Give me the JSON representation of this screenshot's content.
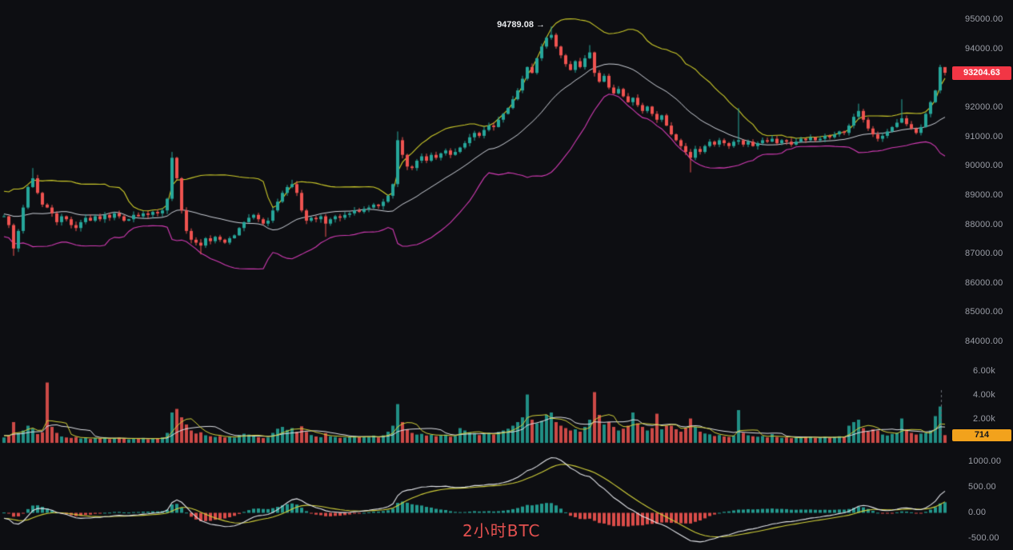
{
  "watermark": {
    "text": "2小时BTC",
    "color": "#e2504f"
  },
  "annotation": {
    "text": "94789.08 →",
    "price": 94789.08,
    "color": "#e8eaed"
  },
  "axes": {
    "price_ticks": [
      {
        "label": "95000.00",
        "value": 95000
      },
      {
        "label": "94000.00",
        "value": 94000
      },
      {
        "label": "92000.00",
        "value": 92000
      },
      {
        "label": "91000.00",
        "value": 91000
      },
      {
        "label": "90000.00",
        "value": 90000
      },
      {
        "label": "89000.00",
        "value": 89000
      },
      {
        "label": "88000.00",
        "value": 88000
      },
      {
        "label": "87000.00",
        "value": 87000
      },
      {
        "label": "86000.00",
        "value": 86000
      },
      {
        "label": "85000.00",
        "value": 85000
      },
      {
        "label": "84000.00",
        "value": 84000
      }
    ],
    "volume_ticks": [
      {
        "label": "6.00k",
        "value": 6000
      },
      {
        "label": "4.00k",
        "value": 4000
      },
      {
        "label": "2.00k",
        "value": 2000
      }
    ],
    "macd_ticks": [
      {
        "label": "1000.00",
        "value": 1000
      },
      {
        "label": "500.00",
        "value": 500
      },
      {
        "label": "0.00",
        "value": 0
      },
      {
        "label": "-500.00",
        "value": -500
      }
    ],
    "last_price_label": "93204.63",
    "last_volume_label": "714"
  },
  "colors": {
    "background": "#0d0e12",
    "axis_text": "#9b9ea7",
    "up": "#26a69a",
    "down": "#ef5350",
    "boll_upper": "#cdcb2a",
    "boll_mid": "#ccd0d8",
    "boll_lower": "#d23bb4",
    "macd_line": "#e4e6eb",
    "signal_line": "#d0cf3a",
    "vol_ma_fast": "#d0cf3a",
    "vol_ma_slow": "#dfe1e6",
    "price_badge_bg": "#f23645",
    "price_badge_text": "#ffffff",
    "volume_badge_bg": "#f2a21c",
    "volume_badge_text": "#17181c",
    "dashed_marker": "#6a6d76"
  },
  "chart_data": {
    "type": "candlestick",
    "timeframe_label": "2小时BTC",
    "panels": [
      "price with bollinger bands",
      "volume with moving averages",
      "macd"
    ],
    "price_axis_range": [
      84000,
      95000
    ],
    "volume_axis_range": [
      0,
      6500
    ],
    "macd_axis_range": [
      -500,
      1000
    ],
    "last_price": 93204.63,
    "last_volume": 714,
    "peak_price": 94789.08,
    "warmup_closes": [
      88900,
      88600,
      88200,
      87800,
      88100,
      88500,
      88900,
      89200,
      88800,
      88400,
      88000,
      87700,
      87900,
      88200,
      88600,
      88900,
      88700,
      88400,
      88100,
      88300
    ],
    "closes": [
      88300,
      88000,
      87200,
      87800,
      88600,
      89300,
      89600,
      89100,
      88700,
      88600,
      88400,
      88100,
      88300,
      88200,
      88000,
      87900,
      88100,
      88250,
      88150,
      88300,
      88200,
      88350,
      88250,
      88400,
      88300,
      88150,
      88200,
      88350,
      88300,
      88400,
      88350,
      88450,
      88400,
      88500,
      88900,
      90300,
      89600,
      88500,
      87800,
      87500,
      87400,
      87300,
      87550,
      87450,
      87600,
      87500,
      87400,
      87550,
      87650,
      87900,
      88100,
      88250,
      88350,
      88200,
      88050,
      88150,
      88500,
      88800,
      89100,
      89300,
      89400,
      89100,
      88500,
      88150,
      88250,
      88200,
      88300,
      88050,
      88200,
      88300,
      88250,
      88350,
      88400,
      88500,
      88450,
      88550,
      88600,
      88700,
      88650,
      88800,
      89000,
      89400,
      90900,
      90400,
      90000,
      89950,
      90200,
      90350,
      90200,
      90400,
      90300,
      90450,
      90550,
      90400,
      90500,
      90650,
      90800,
      91000,
      91150,
      91050,
      91250,
      91400,
      91350,
      91600,
      91800,
      92000,
      92300,
      92600,
      93000,
      93400,
      93200,
      93700,
      94100,
      94400,
      94500,
      94100,
      93800,
      93500,
      93300,
      93600,
      93400,
      93700,
      93900,
      93200,
      92900,
      93100,
      92700,
      92500,
      92650,
      92400,
      92200,
      92350,
      92100,
      91900,
      92050,
      91800,
      91600,
      91750,
      91400,
      91100,
      90900,
      90700,
      90500,
      90300,
      90600,
      90500,
      90700,
      90850,
      90750,
      90900,
      90800,
      90700,
      90850,
      90900,
      90750,
      90850,
      90700,
      90800,
      90900,
      90850,
      90950,
      90800,
      90900,
      90850,
      90750,
      90850,
      90950,
      90900,
      91000,
      90900,
      90950,
      91050,
      91000,
      91100,
      91200,
      91150,
      91400,
      91700,
      91900,
      91600,
      91300,
      91100,
      90950,
      91050,
      91200,
      91350,
      91500,
      91650,
      91450,
      91300,
      91150,
      91350,
      91800,
      92200,
      92600,
      93400,
      93204.63
    ],
    "volumes": [
      520,
      680,
      1800,
      900,
      1100,
      1500,
      1250,
      800,
      950,
      5100,
      1400,
      900,
      600,
      520,
      480,
      560,
      430,
      510,
      390,
      470,
      420,
      540,
      380,
      460,
      500,
      420,
      360,
      440,
      400,
      480,
      370,
      450,
      410,
      530,
      900,
      2600,
      2900,
      2200,
      1600,
      1100,
      850,
      950,
      700,
      620,
      560,
      640,
      520,
      580,
      500,
      720,
      830,
      760,
      680,
      540,
      470,
      520,
      900,
      1250,
      1400,
      1150,
      1300,
      1000,
      1450,
      980,
      720,
      600,
      540,
      880,
      620,
      560,
      480,
      520,
      580,
      640,
      540,
      600,
      560,
      680,
      520,
      700,
      1000,
      1500,
      3300,
      1800,
      1200,
      900,
      760,
      820,
      680,
      740,
      620,
      700,
      760,
      580,
      640,
      1300,
      1100,
      950,
      880,
      720,
      800,
      900,
      760,
      980,
      1100,
      1250,
      1500,
      1800,
      2200,
      4100,
      2000,
      1700,
      1900,
      2400,
      2600,
      1800,
      1500,
      1300,
      1100,
      1200,
      1000,
      1400,
      2000,
      4300,
      2400,
      1600,
      1800,
      1400,
      1100,
      1250,
      1500,
      2600,
      1700,
      1400,
      1100,
      1300,
      2500,
      1200,
      1500,
      1500,
      1200,
      1000,
      1300,
      2100,
      1400,
      1000,
      850,
      780,
      640,
      720,
      600,
      560,
      680,
      2800,
      900,
      700,
      620,
      580,
      640,
      520,
      800,
      560,
      480,
      520,
      460,
      540,
      500,
      560,
      600,
      480,
      520,
      580,
      500,
      560,
      620,
      540,
      1500,
      1800,
      2000,
      1300,
      1000,
      1200,
      1100,
      760,
      680,
      820,
      900,
      2100,
      1200,
      900,
      760,
      840,
      900,
      1100,
      2300,
      3100,
      714
    ],
    "wick_overrides": {
      "2": {
        "low": 86950
      },
      "6": {
        "high": 89950
      },
      "35": {
        "high": 90500
      },
      "41": {
        "low": 87000
      },
      "60": {
        "high": 89550
      },
      "67": {
        "low": 87600
      },
      "82": {
        "high": 91200
      },
      "114": {
        "high": 94789.08
      },
      "122": {
        "high": 94150
      },
      "143": {
        "low": 89800
      },
      "153": {
        "high": 92000
      },
      "178": {
        "high": 92150
      },
      "187": {
        "high": 92300
      },
      "195": {
        "high": 93480
      },
      "196": {
        "high": 93320
      }
    },
    "indicators": {
      "bollinger": {
        "period": 20,
        "stddev": 2
      },
      "macd": {
        "fast": 12,
        "slow": 26,
        "signal": 9
      },
      "volume_ma_periods": [
        5,
        10
      ]
    }
  }
}
